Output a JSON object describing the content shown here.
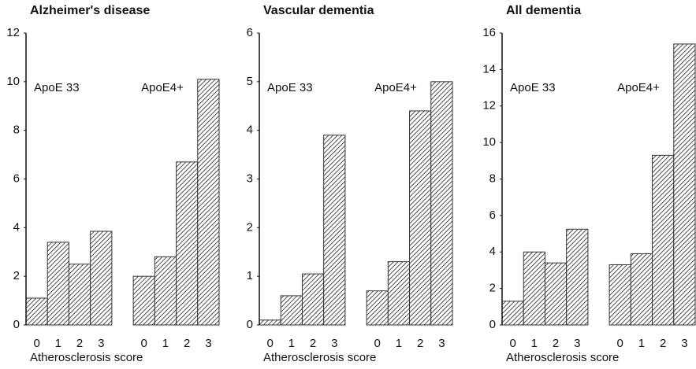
{
  "chart_data": [
    {
      "type": "bar",
      "title": "Alzheimer's disease",
      "x_label": "Atherosclerosis score",
      "categories": [
        "0",
        "1",
        "2",
        "3"
      ],
      "series": [
        {
          "name": "ApoE 33",
          "color": "#333333",
          "values": [
            1.1,
            3.4,
            2.5,
            3.85
          ]
        },
        {
          "name": "ApoE4+",
          "color": "#333333",
          "values": [
            2.0,
            2.8,
            6.7,
            10.1
          ]
        }
      ],
      "ylim": [
        0,
        12
      ],
      "yticks": [
        0,
        2,
        4,
        6,
        8,
        10,
        12
      ]
    },
    {
      "type": "bar",
      "title": "Vascular dementia",
      "x_label": "Atherosclerosis score",
      "categories": [
        "0",
        "1",
        "2",
        "3"
      ],
      "series": [
        {
          "name": "ApoE 33",
          "color": "#333333",
          "values": [
            0.1,
            0.6,
            1.05,
            3.9
          ]
        },
        {
          "name": "ApoE4+",
          "color": "#333333",
          "values": [
            0.7,
            1.3,
            4.4,
            5.0
          ]
        }
      ],
      "ylim": [
        0,
        6
      ],
      "yticks": [
        0,
        1,
        2,
        3,
        4,
        5,
        6
      ]
    },
    {
      "type": "bar",
      "title": "All dementia",
      "x_label": "Atherosclerosis score",
      "categories": [
        "0",
        "1",
        "2",
        "3"
      ],
      "series": [
        {
          "name": "ApoE 33",
          "color": "#333333",
          "values": [
            1.3,
            4.0,
            3.4,
            5.25
          ]
        },
        {
          "name": "ApoE4+",
          "color": "#333333",
          "values": [
            3.3,
            3.9,
            9.3,
            15.4
          ]
        }
      ],
      "ylim": [
        0,
        16
      ],
      "yticks": [
        0,
        2,
        4,
        6,
        8,
        10,
        12,
        14,
        16
      ]
    }
  ]
}
